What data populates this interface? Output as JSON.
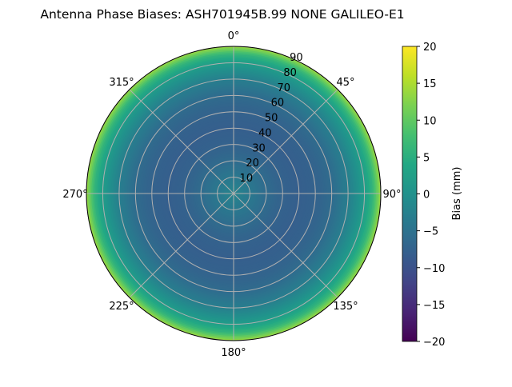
{
  "chart_data": {
    "type": "heatmap",
    "projection": "polar",
    "title": "Antenna Phase Biases: ASH701945B.99   NONE GALILEO-E1",
    "theta_ticks": [
      "0°",
      "45°",
      "90°",
      "135°",
      "180°",
      "225°",
      "270°",
      "315°"
    ],
    "r_ticks": [
      "10",
      "20",
      "30",
      "40",
      "50",
      "60",
      "70",
      "80",
      "90"
    ],
    "r_range": [
      0,
      90
    ],
    "theta_zero": "north",
    "theta_direction": "clockwise",
    "grid": true,
    "colorbar": {
      "label": "Bias (mm)",
      "range": [
        -20,
        20
      ],
      "ticks": [
        "20",
        "15",
        "10",
        "5",
        "0",
        "−5",
        "−10",
        "−15",
        "−20"
      ],
      "colormap": "viridis"
    },
    "radial_profile": {
      "zenith_deg": [
        0,
        10,
        20,
        30,
        40,
        50,
        60,
        70,
        80,
        85,
        90
      ],
      "bias_mm": [
        -2,
        -4,
        -6,
        -7.5,
        -8,
        -7.5,
        -6,
        -3,
        2,
        6,
        14
      ]
    }
  }
}
